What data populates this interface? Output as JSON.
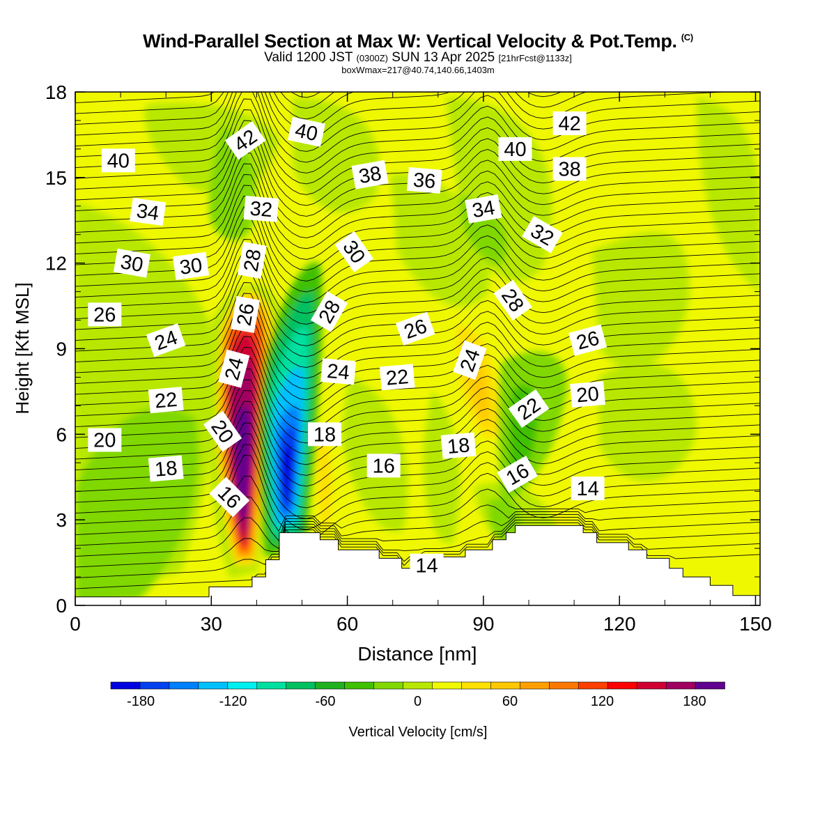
{
  "header": {
    "title": "Wind-Parallel Section at Max W: Vertical Velocity & Pot.Temp.",
    "copyright_mark": "(C)",
    "valid_prefix": "Valid 1200 JST",
    "valid_utc": "(0300Z)",
    "valid_date": "SUN 13 Apr 2025",
    "forecast_info": "[21hrFcst@1133z]",
    "box_info": "boxWmax=217@40.74,140.66,1403m"
  },
  "colorbar": {
    "label": "Vertical Velocity [cm/s]",
    "tick_labels": [
      "-180",
      "-120",
      "-60",
      "0",
      "60",
      "120",
      "180"
    ],
    "tick_values": [
      -180,
      -120,
      -60,
      0,
      60,
      120,
      180
    ],
    "range": [
      -200,
      200
    ],
    "bin_size": 20,
    "colors": [
      "#0000e0",
      "#0040f0",
      "#0080ff",
      "#00c0ff",
      "#00f0f0",
      "#00e0a0",
      "#00c060",
      "#20b020",
      "#40c000",
      "#80d800",
      "#b8e800",
      "#f0f800",
      "#ffe000",
      "#ffc800",
      "#ffa000",
      "#ff7800",
      "#ff4000",
      "#ff0000",
      "#d00030",
      "#a00060",
      "#600090"
    ]
  },
  "chart_data": {
    "type": "contour",
    "title": "Wind-Parallel Section at Max W: Vertical Velocity & Pot.Temp.",
    "xlabel": "Distance [nm]",
    "ylabel": "Height [Kft MSL]",
    "xlim": [
      0,
      151
    ],
    "ylim": [
      0,
      18
    ],
    "x_ticks": [
      0,
      30,
      60,
      90,
      120,
      150
    ],
    "y_ticks": [
      0,
      3,
      6,
      9,
      12,
      15,
      18
    ],
    "x_tick_labels": [
      "0",
      "30",
      "60",
      "90",
      "120",
      "150"
    ],
    "y_tick_labels": [
      "0",
      "3",
      "6",
      "9",
      "12",
      "15",
      "18"
    ],
    "shading_field": "Vertical Velocity [cm/s]",
    "contour_field": "Potential temperature",
    "vertical_velocity_features": [
      {
        "name": "updraft core",
        "x": 37,
        "y": 5.8,
        "peak_value": 200
      },
      {
        "name": "downdraft core",
        "x": 47,
        "y": 4.7,
        "peak_value": -180
      },
      {
        "name": "secondary updraft",
        "x": 88,
        "y": 7.8,
        "peak_value": 60
      },
      {
        "name": "downdraft band",
        "x": 102,
        "y": 6.0,
        "peak_value": -60
      }
    ],
    "terrain_profile": [
      {
        "x": 0,
        "y": 0.3
      },
      {
        "x": 29.5,
        "y": 0.3
      },
      {
        "x": 29.5,
        "y": 0.65
      },
      {
        "x": 39,
        "y": 0.65
      },
      {
        "x": 39,
        "y": 1.0
      },
      {
        "x": 42,
        "y": 1.0
      },
      {
        "x": 42,
        "y": 1.6
      },
      {
        "x": 45,
        "y": 1.6
      },
      {
        "x": 45,
        "y": 2.55
      },
      {
        "x": 54,
        "y": 2.55
      },
      {
        "x": 54,
        "y": 2.3
      },
      {
        "x": 58,
        "y": 2.3
      },
      {
        "x": 58,
        "y": 1.95
      },
      {
        "x": 67,
        "y": 1.95
      },
      {
        "x": 67,
        "y": 1.65
      },
      {
        "x": 72,
        "y": 1.65
      },
      {
        "x": 72,
        "y": 1.3
      },
      {
        "x": 74,
        "y": 1.3
      },
      {
        "x": 74,
        "y": 1.55
      },
      {
        "x": 77,
        "y": 1.55
      },
      {
        "x": 77,
        "y": 1.7
      },
      {
        "x": 86,
        "y": 1.7
      },
      {
        "x": 86,
        "y": 1.95
      },
      {
        "x": 92,
        "y": 1.95
      },
      {
        "x": 92,
        "y": 2.3
      },
      {
        "x": 95,
        "y": 2.3
      },
      {
        "x": 95,
        "y": 2.55
      },
      {
        "x": 97,
        "y": 2.55
      },
      {
        "x": 97,
        "y": 2.8
      },
      {
        "x": 112,
        "y": 2.8
      },
      {
        "x": 112,
        "y": 2.55
      },
      {
        "x": 115,
        "y": 2.55
      },
      {
        "x": 115,
        "y": 2.2
      },
      {
        "x": 122,
        "y": 2.2
      },
      {
        "x": 122,
        "y": 1.95
      },
      {
        "x": 126,
        "y": 1.95
      },
      {
        "x": 126,
        "y": 1.65
      },
      {
        "x": 131,
        "y": 1.65
      },
      {
        "x": 131,
        "y": 1.3
      },
      {
        "x": 134,
        "y": 1.3
      },
      {
        "x": 134,
        "y": 1.0
      },
      {
        "x": 140,
        "y": 1.0
      },
      {
        "x": 140,
        "y": 0.7
      },
      {
        "x": 145,
        "y": 0.7
      },
      {
        "x": 145,
        "y": 0.35
      },
      {
        "x": 151,
        "y": 0.35
      }
    ],
    "contour_labels": [
      {
        "text": "40",
        "x": 9.5,
        "y": 15.6,
        "angle": 0
      },
      {
        "text": "42",
        "x": 37.5,
        "y": 16.3,
        "angle": -35
      },
      {
        "text": "40",
        "x": 51,
        "y": 16.6,
        "angle": 12
      },
      {
        "text": "42",
        "x": 109,
        "y": 16.9,
        "angle": 0
      },
      {
        "text": "40",
        "x": 97,
        "y": 16.0,
        "angle": 0
      },
      {
        "text": "38",
        "x": 65,
        "y": 15.1,
        "angle": -10
      },
      {
        "text": "36",
        "x": 77,
        "y": 14.9,
        "angle": 5
      },
      {
        "text": "38",
        "x": 109,
        "y": 15.3,
        "angle": 0
      },
      {
        "text": "34",
        "x": 16,
        "y": 13.8,
        "angle": 8
      },
      {
        "text": "32",
        "x": 41,
        "y": 13.9,
        "angle": 5
      },
      {
        "text": "34",
        "x": 90,
        "y": 13.9,
        "angle": -10
      },
      {
        "text": "32",
        "x": 103,
        "y": 13.0,
        "angle": 30
      },
      {
        "text": "30",
        "x": 12.5,
        "y": 12.0,
        "angle": 10
      },
      {
        "text": "30",
        "x": 25.5,
        "y": 11.9,
        "angle": -8
      },
      {
        "text": "28",
        "x": 39,
        "y": 12.1,
        "angle": -80
      },
      {
        "text": "30",
        "x": 61.5,
        "y": 12.4,
        "angle": 55
      },
      {
        "text": "26",
        "x": 6.5,
        "y": 10.2,
        "angle": 0
      },
      {
        "text": "26",
        "x": 37.5,
        "y": 10.2,
        "angle": -80
      },
      {
        "text": "28",
        "x": 56,
        "y": 10.3,
        "angle": -60
      },
      {
        "text": "28",
        "x": 96.5,
        "y": 10.7,
        "angle": 55
      },
      {
        "text": "24",
        "x": 20,
        "y": 9.3,
        "angle": -20
      },
      {
        "text": "26",
        "x": 75,
        "y": 9.7,
        "angle": -20
      },
      {
        "text": "26",
        "x": 113,
        "y": 9.3,
        "angle": -15
      },
      {
        "text": "24",
        "x": 35,
        "y": 8.3,
        "angle": -75
      },
      {
        "text": "24",
        "x": 58,
        "y": 8.2,
        "angle": 5
      },
      {
        "text": "22",
        "x": 71,
        "y": 8.0,
        "angle": -5
      },
      {
        "text": "24",
        "x": 87,
        "y": 8.6,
        "angle": -70
      },
      {
        "text": "22",
        "x": 20,
        "y": 7.2,
        "angle": -5
      },
      {
        "text": "22",
        "x": 100,
        "y": 6.9,
        "angle": -35
      },
      {
        "text": "20",
        "x": 113,
        "y": 7.4,
        "angle": -5
      },
      {
        "text": "20",
        "x": 6.5,
        "y": 5.8,
        "angle": 0
      },
      {
        "text": "20",
        "x": 32.5,
        "y": 6.1,
        "angle": 55
      },
      {
        "text": "18",
        "x": 55,
        "y": 6.0,
        "angle": 0
      },
      {
        "text": "18",
        "x": 84.5,
        "y": 5.6,
        "angle": -5
      },
      {
        "text": "18",
        "x": 20,
        "y": 4.8,
        "angle": -5
      },
      {
        "text": "16",
        "x": 68,
        "y": 4.9,
        "angle": 0
      },
      {
        "text": "16",
        "x": 97.5,
        "y": 4.6,
        "angle": -30
      },
      {
        "text": "14",
        "x": 113,
        "y": 4.1,
        "angle": 0
      },
      {
        "text": "16",
        "x": 34,
        "y": 3.8,
        "angle": 45
      },
      {
        "text": "14",
        "x": 77.5,
        "y": 1.4,
        "angle": 0
      }
    ]
  }
}
